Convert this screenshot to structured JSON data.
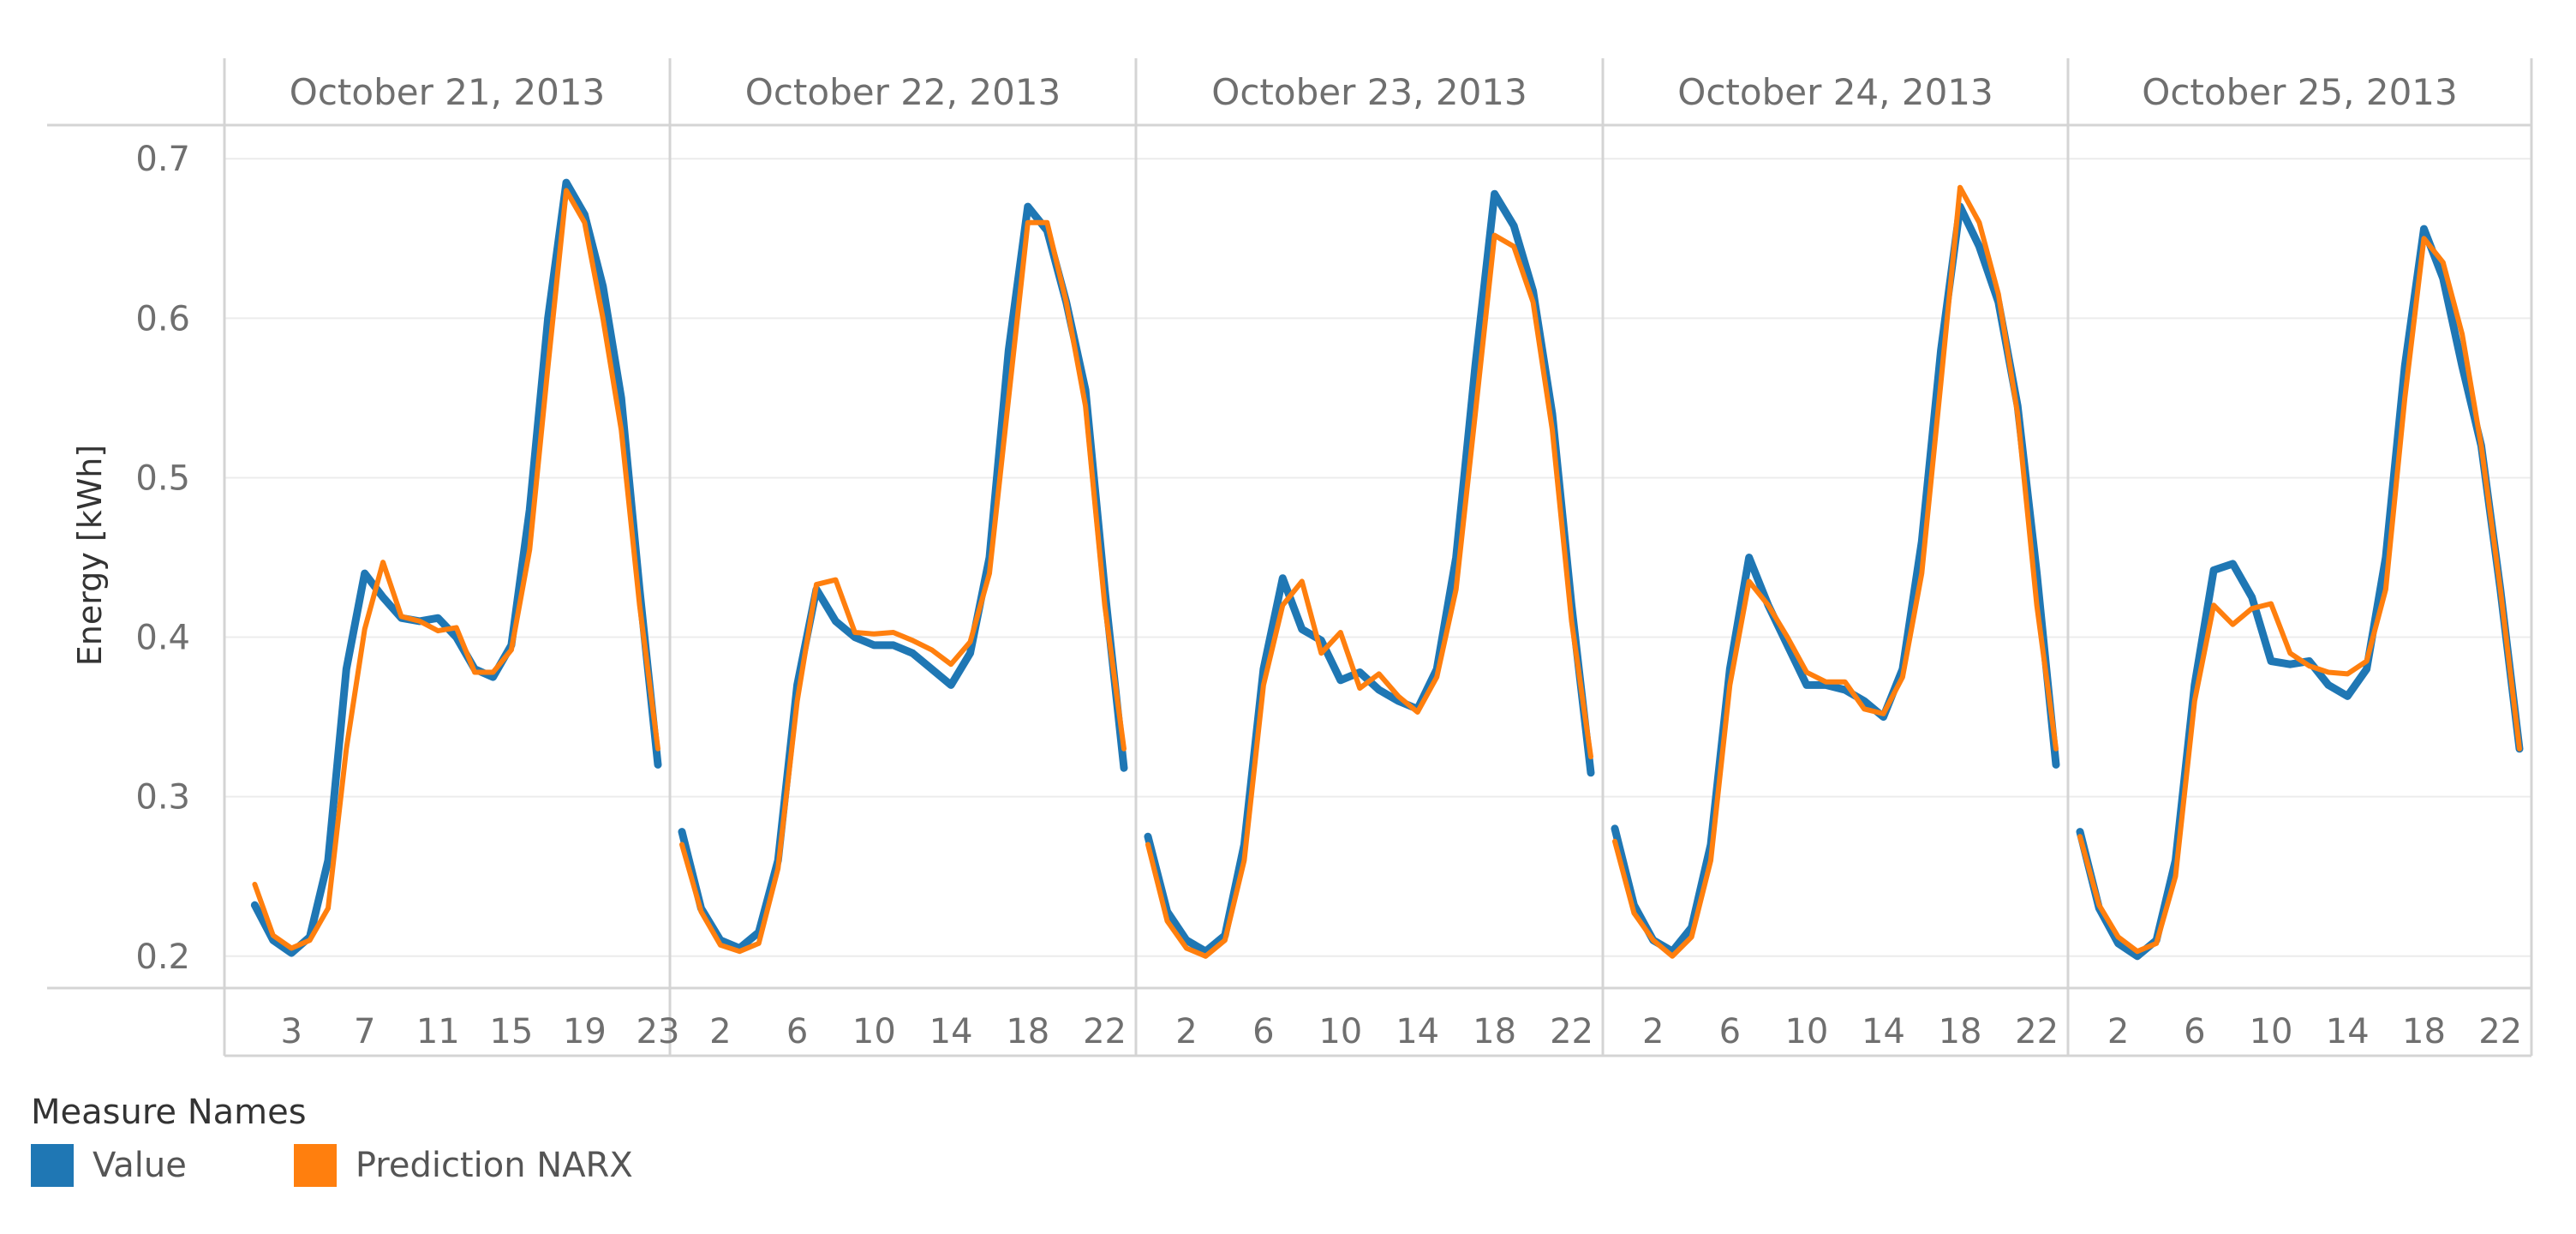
{
  "chart_data": {
    "type": "line",
    "ylabel": "Energy [kWh]",
    "ylim": [
      0.18,
      0.72
    ],
    "yticks": [
      0.2,
      0.3,
      0.4,
      0.5,
      0.6,
      0.7
    ],
    "ytick_labels": [
      "0.2",
      "0.3",
      "0.4",
      "0.5",
      "0.6",
      "0.7"
    ],
    "grid": true,
    "legend_position": "bottom-left",
    "legend_title": "Measure Names",
    "series": [
      {
        "name": "Value",
        "color": "#1f77b4"
      },
      {
        "name": "Prediction NARX",
        "color": "#ff7f0e"
      }
    ],
    "panels": [
      {
        "title": "October 21, 2013",
        "x": [
          1,
          2,
          3,
          4,
          5,
          6,
          7,
          8,
          9,
          10,
          11,
          12,
          13,
          14,
          15,
          16,
          17,
          18,
          19,
          20,
          21,
          22,
          23
        ],
        "xticks": [
          3,
          7,
          11,
          15,
          19,
          23
        ],
        "xtick_labels": [
          "3",
          "7",
          "11",
          "15",
          "19",
          "23"
        ],
        "value": [
          0.232,
          0.21,
          0.202,
          0.212,
          0.26,
          0.38,
          0.44,
          0.425,
          0.412,
          0.41,
          0.412,
          0.4,
          0.38,
          0.375,
          0.395,
          0.48,
          0.6,
          0.685,
          0.665,
          0.62,
          0.55,
          0.43,
          0.32
        ],
        "prediction": [
          0.245,
          0.213,
          0.205,
          0.21,
          0.23,
          0.33,
          0.405,
          0.447,
          0.413,
          0.41,
          0.404,
          0.406,
          0.378,
          0.378,
          0.392,
          0.455,
          0.57,
          0.68,
          0.66,
          0.6,
          0.53,
          0.42,
          0.33
        ]
      },
      {
        "title": "October 22, 2013",
        "x": [
          0,
          1,
          2,
          3,
          4,
          5,
          6,
          7,
          8,
          9,
          10,
          11,
          12,
          13,
          14,
          15,
          16,
          17,
          18,
          19,
          20,
          21,
          22,
          23
        ],
        "xticks": [
          2,
          6,
          10,
          14,
          18,
          22
        ],
        "xtick_labels": [
          "2",
          "6",
          "10",
          "14",
          "18",
          "22"
        ],
        "value": [
          0.278,
          0.23,
          0.21,
          0.205,
          0.215,
          0.26,
          0.37,
          0.43,
          0.41,
          0.4,
          0.395,
          0.395,
          0.39,
          0.38,
          0.37,
          0.39,
          0.45,
          0.58,
          0.67,
          0.655,
          0.61,
          0.555,
          0.43,
          0.318
        ],
        "prediction": [
          0.27,
          0.228,
          0.207,
          0.203,
          0.208,
          0.255,
          0.36,
          0.433,
          0.436,
          0.403,
          0.402,
          0.403,
          0.398,
          0.392,
          0.383,
          0.397,
          0.44,
          0.55,
          0.66,
          0.66,
          0.61,
          0.545,
          0.42,
          0.33
        ]
      },
      {
        "title": "October 23, 2013",
        "x": [
          0,
          1,
          2,
          3,
          4,
          5,
          6,
          7,
          8,
          9,
          10,
          11,
          12,
          13,
          14,
          15,
          16,
          17,
          18,
          19,
          20,
          21,
          22,
          23
        ],
        "xticks": [
          2,
          6,
          10,
          14,
          18,
          22
        ],
        "xtick_labels": [
          "2",
          "6",
          "10",
          "14",
          "18",
          "22"
        ],
        "value": [
          0.275,
          0.228,
          0.21,
          0.203,
          0.213,
          0.27,
          0.38,
          0.437,
          0.405,
          0.398,
          0.373,
          0.378,
          0.367,
          0.36,
          0.355,
          0.38,
          0.45,
          0.57,
          0.678,
          0.658,
          0.617,
          0.54,
          0.42,
          0.315
        ],
        "prediction": [
          0.27,
          0.222,
          0.205,
          0.2,
          0.21,
          0.26,
          0.37,
          0.42,
          0.435,
          0.39,
          0.403,
          0.368,
          0.377,
          0.363,
          0.353,
          0.375,
          0.43,
          0.54,
          0.652,
          0.645,
          0.61,
          0.53,
          0.41,
          0.325
        ]
      },
      {
        "title": "October 24, 2013",
        "x": [
          0,
          1,
          2,
          3,
          4,
          5,
          6,
          7,
          8,
          9,
          10,
          11,
          12,
          13,
          14,
          15,
          16,
          17,
          18,
          19,
          20,
          21,
          22,
          23
        ],
        "xticks": [
          2,
          6,
          10,
          14,
          18,
          22
        ],
        "xtick_labels": [
          "2",
          "6",
          "10",
          "14",
          "18",
          "22"
        ],
        "value": [
          0.28,
          0.232,
          0.21,
          0.203,
          0.218,
          0.27,
          0.38,
          0.45,
          0.42,
          0.395,
          0.37,
          0.37,
          0.367,
          0.36,
          0.35,
          0.38,
          0.46,
          0.58,
          0.67,
          0.645,
          0.61,
          0.545,
          0.44,
          0.32
        ],
        "prediction": [
          0.272,
          0.227,
          0.21,
          0.2,
          0.212,
          0.26,
          0.37,
          0.435,
          0.42,
          0.4,
          0.378,
          0.372,
          0.372,
          0.355,
          0.352,
          0.375,
          0.44,
          0.56,
          0.682,
          0.66,
          0.615,
          0.54,
          0.42,
          0.33
        ]
      },
      {
        "title": "October 25, 2013",
        "x": [
          0,
          1,
          2,
          3,
          4,
          5,
          6,
          7,
          8,
          9,
          10,
          11,
          12,
          13,
          14,
          15,
          16,
          17,
          18,
          19,
          20,
          21,
          22,
          23
        ],
        "xticks": [
          2,
          6,
          10,
          14,
          18,
          22
        ],
        "xtick_labels": [
          "2",
          "6",
          "10",
          "14",
          "18",
          "22"
        ],
        "value": [
          0.278,
          0.23,
          0.208,
          0.2,
          0.21,
          0.26,
          0.37,
          0.442,
          0.446,
          0.425,
          0.385,
          0.383,
          0.385,
          0.37,
          0.363,
          0.38,
          0.45,
          0.57,
          0.656,
          0.625,
          0.57,
          0.52,
          0.43,
          0.33
        ],
        "prediction": [
          0.275,
          0.232,
          0.212,
          0.203,
          0.208,
          0.25,
          0.36,
          0.42,
          0.408,
          0.418,
          0.421,
          0.39,
          0.382,
          0.378,
          0.377,
          0.385,
          0.43,
          0.55,
          0.65,
          0.635,
          0.59,
          0.52,
          0.43,
          0.33
        ]
      }
    ]
  }
}
